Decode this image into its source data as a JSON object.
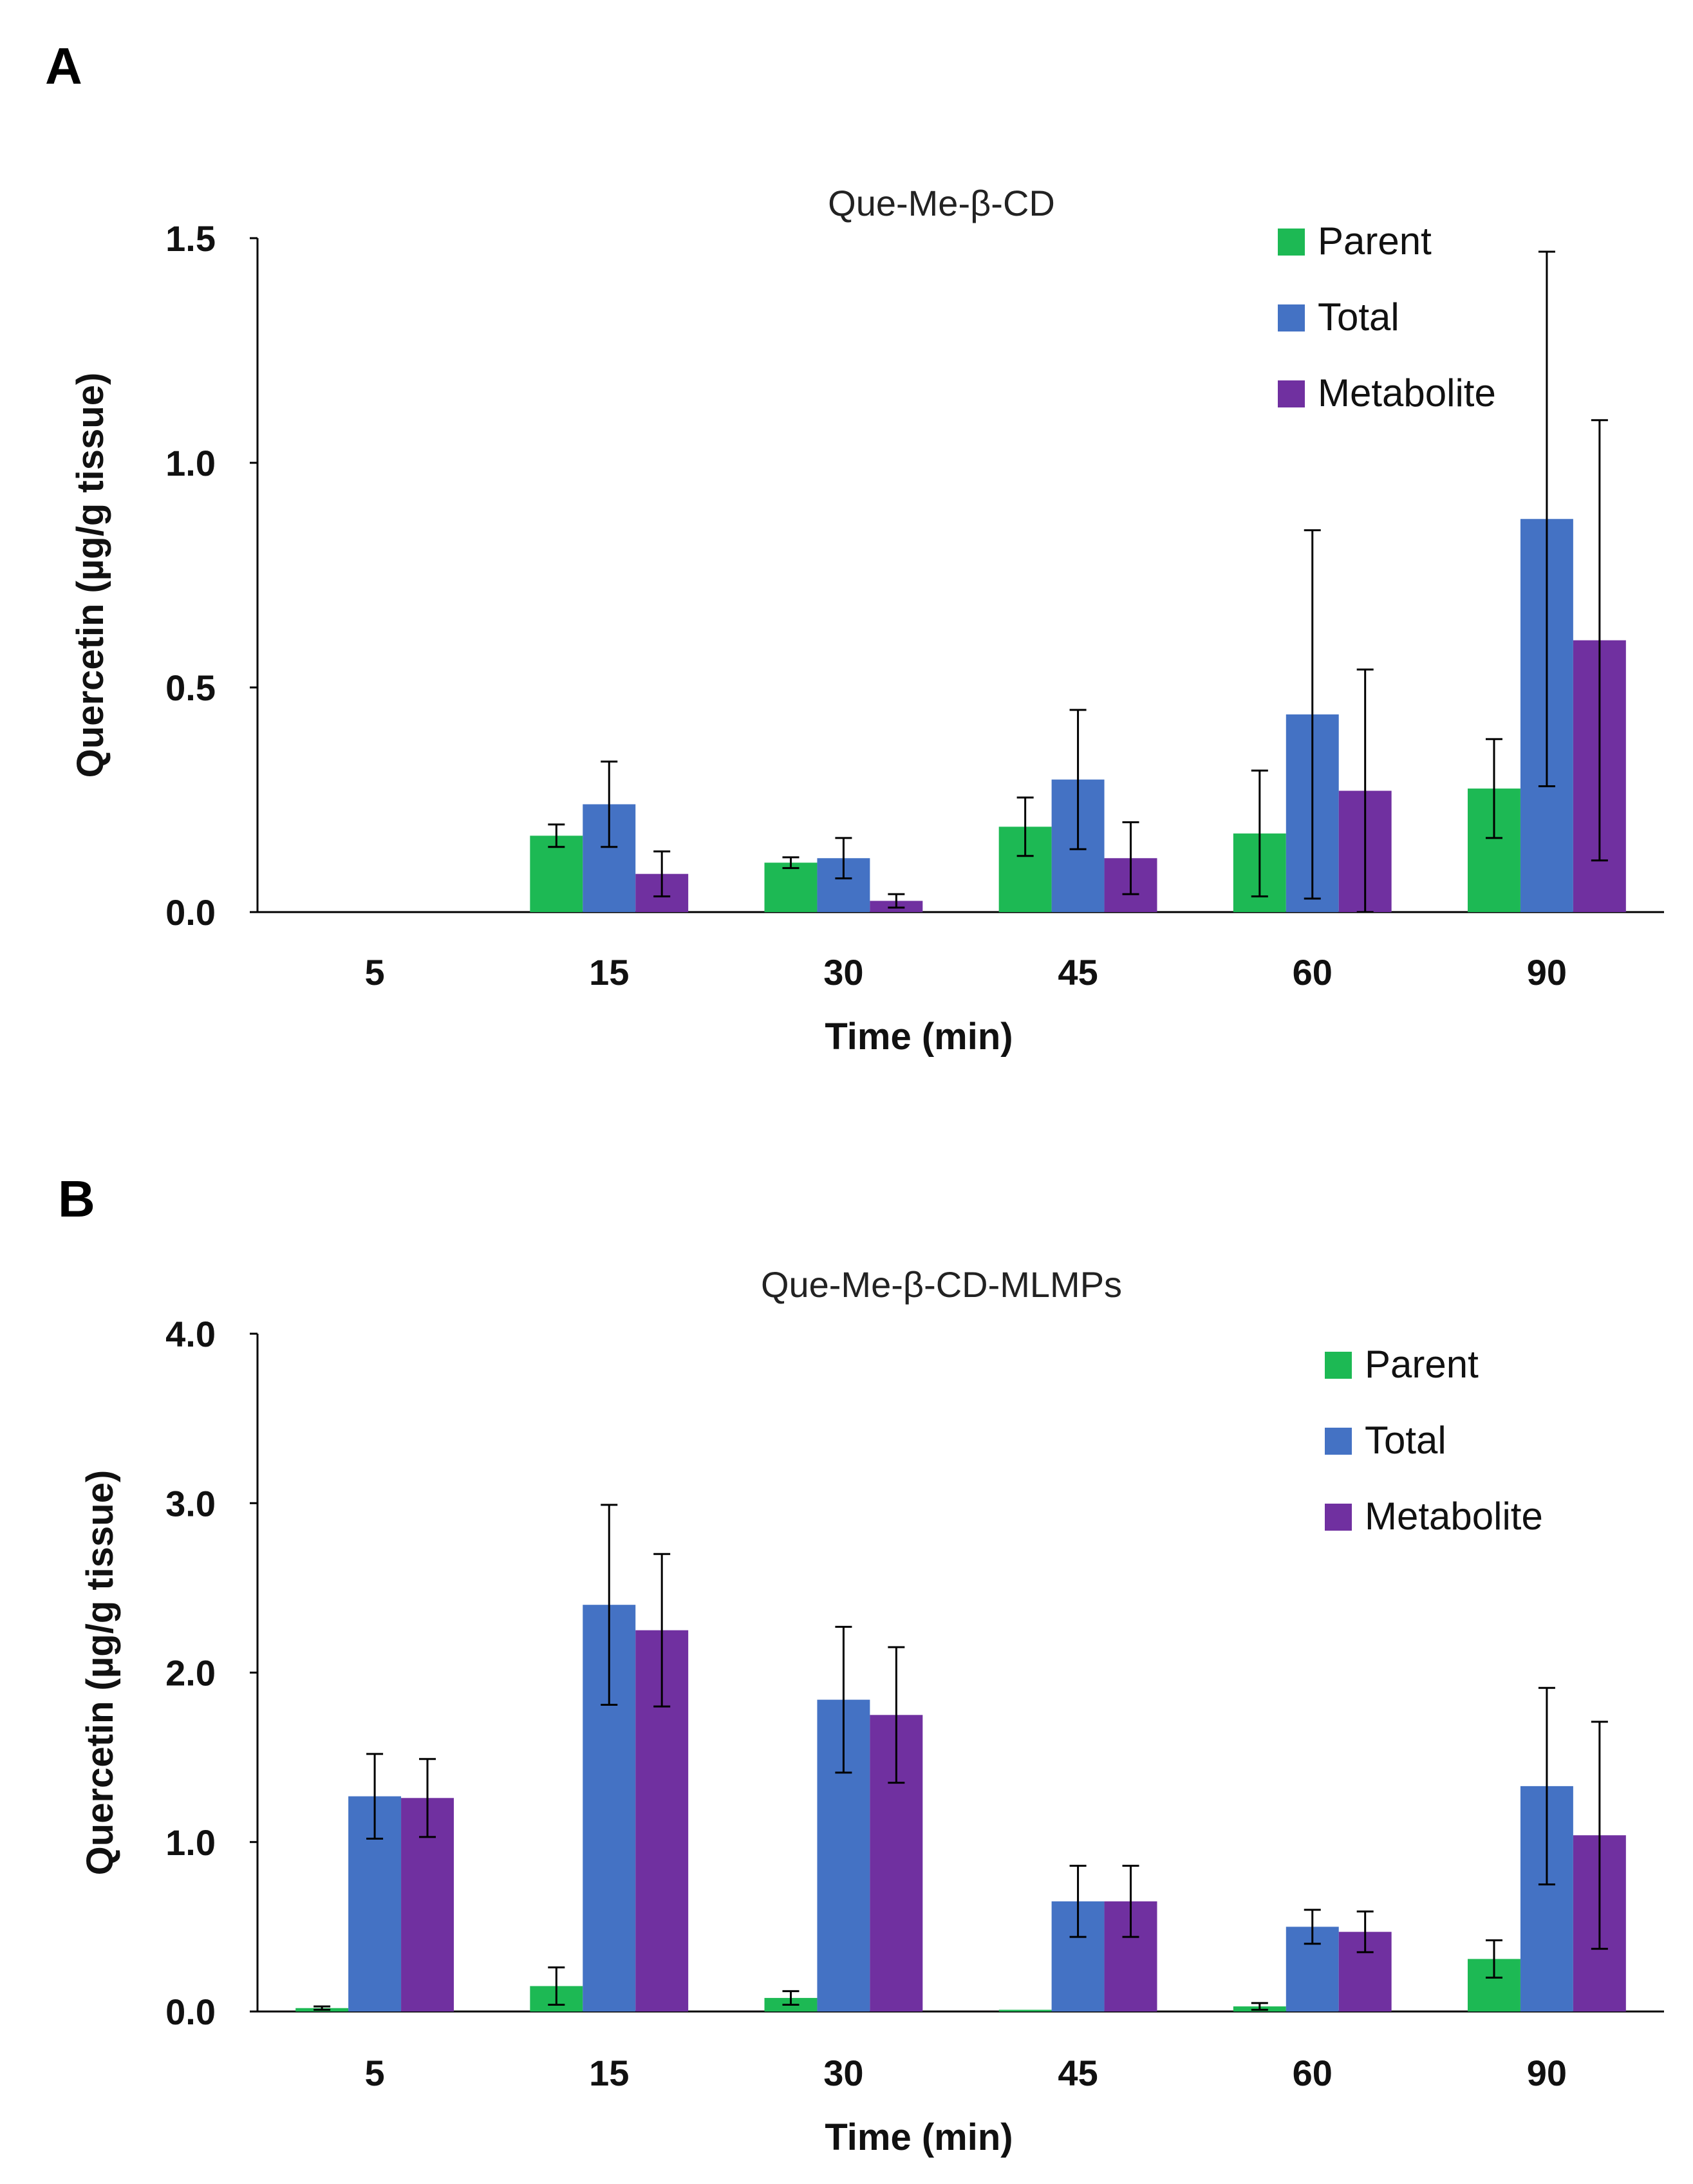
{
  "chart_data": [
    {
      "panel": "A",
      "type": "bar",
      "title": "Que-Me-β-CD",
      "xlabel": "Time (min)",
      "ylabel": "Quercetin (µg/g tissue)",
      "categories": [
        "5",
        "15",
        "30",
        "45",
        "60",
        "90"
      ],
      "ylim": [
        0,
        1.5
      ],
      "yticks": [
        "0.0",
        "0.5",
        "1.0",
        "1.5"
      ],
      "ytick_values": [
        0,
        0.5,
        1.0,
        1.5
      ],
      "legend_position": "top-right",
      "series": [
        {
          "name": "Parent",
          "color": "#1db954",
          "values": [
            0,
            0.17,
            0.11,
            0.19,
            0.175,
            0.275
          ],
          "errors": [
            0,
            0.025,
            0.012,
            0.065,
            0.14,
            0.11
          ]
        },
        {
          "name": "Total",
          "color": "#4472c4",
          "values": [
            0,
            0.24,
            0.12,
            0.295,
            0.44,
            0.875
          ],
          "errors": [
            0,
            0.095,
            0.045,
            0.155,
            0.41,
            0.595
          ]
        },
        {
          "name": "Metabolite",
          "color": "#7030a0",
          "values": [
            0,
            0.085,
            0.025,
            0.12,
            0.27,
            0.605
          ],
          "errors": [
            0,
            0.05,
            0.015,
            0.08,
            0.27,
            0.49
          ]
        }
      ]
    },
    {
      "panel": "B",
      "type": "bar",
      "title": "Que-Me-β-CD-MLMPs",
      "xlabel": "Time (min)",
      "ylabel": "Quercetin (µg/g tissue)",
      "categories": [
        "5",
        "15",
        "30",
        "45",
        "60",
        "90"
      ],
      "ylim": [
        0,
        4.0
      ],
      "yticks": [
        "0.0",
        "1.0",
        "2.0",
        "3.0",
        "4.0"
      ],
      "ytick_values": [
        0,
        1.0,
        2.0,
        3.0,
        4.0
      ],
      "legend_position": "top-right",
      "series": [
        {
          "name": "Parent",
          "color": "#1db954",
          "values": [
            0.02,
            0.15,
            0.08,
            0.01,
            0.03,
            0.31
          ],
          "errors": [
            0.01,
            0.11,
            0.04,
            0.0,
            0.02,
            0.11
          ]
        },
        {
          "name": "Total",
          "color": "#4472c4",
          "values": [
            1.27,
            2.4,
            1.84,
            0.65,
            0.5,
            1.33
          ],
          "errors": [
            0.25,
            0.59,
            0.43,
            0.21,
            0.1,
            0.58
          ]
        },
        {
          "name": "Metabolite",
          "color": "#7030a0",
          "values": [
            1.26,
            2.25,
            1.75,
            0.65,
            0.47,
            1.04
          ],
          "errors": [
            0.23,
            0.45,
            0.4,
            0.21,
            0.12,
            0.67
          ]
        }
      ]
    }
  ]
}
